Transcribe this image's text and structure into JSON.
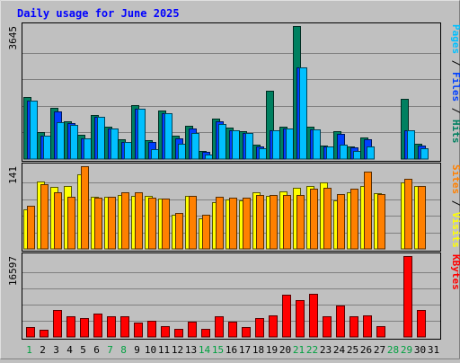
{
  "chart_data": {
    "type": "bar",
    "title": "Daily usage for June 2025",
    "categories": [
      "1",
      "2",
      "3",
      "4",
      "5",
      "6",
      "7",
      "8",
      "9",
      "10",
      "11",
      "12",
      "13",
      "14",
      "15",
      "16",
      "17",
      "18",
      "19",
      "20",
      "21",
      "22",
      "23",
      "24",
      "25",
      "26",
      "27",
      "28",
      "29",
      "30",
      "31"
    ],
    "weekend_days": [
      "1",
      "7",
      "8",
      "14",
      "15",
      "21",
      "22",
      "28",
      "29"
    ],
    "panels": [
      {
        "name": "hits-files-pages",
        "ymax_label": "3645",
        "ylim": [
          0,
          3645
        ],
        "right_labels": [
          {
            "text": "Pages",
            "color": "#00c0ff"
          },
          {
            "text": " / ",
            "color": "#000000"
          },
          {
            "text": "Files",
            "color": "#0040ff"
          },
          {
            "text": " / ",
            "color": "#000000"
          },
          {
            "text": "Hits",
            "color": "#008060"
          }
        ],
        "series": [
          {
            "name": "Hits",
            "color": "#008060",
            "values": [
              1690,
              730,
              1400,
              1030,
              660,
              1210,
              890,
              530,
              1480,
              510,
              1320,
              630,
              910,
              210,
              1110,
              850,
              770,
              390,
              1870,
              890,
              3645,
              890,
              370,
              760,
              350,
              580,
              0,
              0,
              1640,
              420,
              0
            ]
          },
          {
            "name": "Files",
            "color": "#0040ff",
            "values": [
              1590,
              640,
              1300,
              980,
              560,
              1150,
              830,
              480,
              1390,
              470,
              1250,
              570,
              840,
              190,
              1030,
              790,
              720,
              350,
              790,
              830,
              2500,
              820,
              340,
              700,
              320,
              540,
              0,
              0,
              790,
              380,
              0
            ]
          },
          {
            "name": "Pages",
            "color": "#00c0ff",
            "values": [
              1590,
              640,
              1000,
              930,
              560,
              1150,
              830,
              480,
              1390,
              280,
              1250,
              410,
              720,
              130,
              950,
              790,
              720,
              300,
              790,
              830,
              2500,
              820,
              340,
              400,
              230,
              350,
              0,
              0,
              790,
              300,
              0
            ]
          }
        ]
      },
      {
        "name": "visits-sites",
        "ymax_label": "141",
        "ylim": [
          0,
          141
        ],
        "right_labels": [
          {
            "text": "Sites",
            "color": "#ff8000"
          },
          {
            "text": " / ",
            "color": "#000000"
          },
          {
            "text": "Visits",
            "color": "#ffff00"
          }
        ],
        "series": [
          {
            "name": "Visits",
            "color": "#ffff00",
            "values": [
              67,
              115,
              106,
              108,
              127,
              89,
              89,
              92,
              90,
              90,
              86,
              58,
              90,
              52,
              80,
              85,
              82,
              96,
              90,
              98,
              104,
              108,
              114,
              82,
              96,
              108,
              95,
              0,
              114,
              108,
              0
            ]
          },
          {
            "name": "Sites",
            "color": "#ff8000",
            "values": [
              74,
              110,
              97,
              89,
              141,
              88,
              89,
              96,
              97,
              88,
              86,
              62,
              90,
              58,
              89,
              88,
              88,
              92,
              92,
              92,
              92,
              102,
              104,
              94,
              102,
              132,
              94,
              0,
              120,
              108,
              0
            ]
          }
        ]
      },
      {
        "name": "kbytes",
        "ymax_label": "16597",
        "ylim": [
          0,
          16597
        ],
        "right_labels": [
          {
            "text": "KBytes",
            "color": "#ff0000"
          }
        ],
        "series": [
          {
            "name": "KBytes",
            "color": "#ff0000",
            "values": [
              2000,
              1500,
              5500,
              4200,
              3800,
              4800,
              4200,
              4200,
              3000,
              3300,
              2200,
              1600,
              3100,
              1600,
              4200,
              3100,
              2100,
              3800,
              4400,
              8600,
              7600,
              8800,
              4300,
              6400,
              4200,
              4400,
              2300,
              0,
              16597,
              5500,
              0
            ]
          }
        ]
      }
    ],
    "colors": {
      "background": "#c0c0c0",
      "title": "#0000ff",
      "weekday_label": "#008080",
      "weekend_label": "#00a040",
      "frame": "#000000"
    }
  }
}
